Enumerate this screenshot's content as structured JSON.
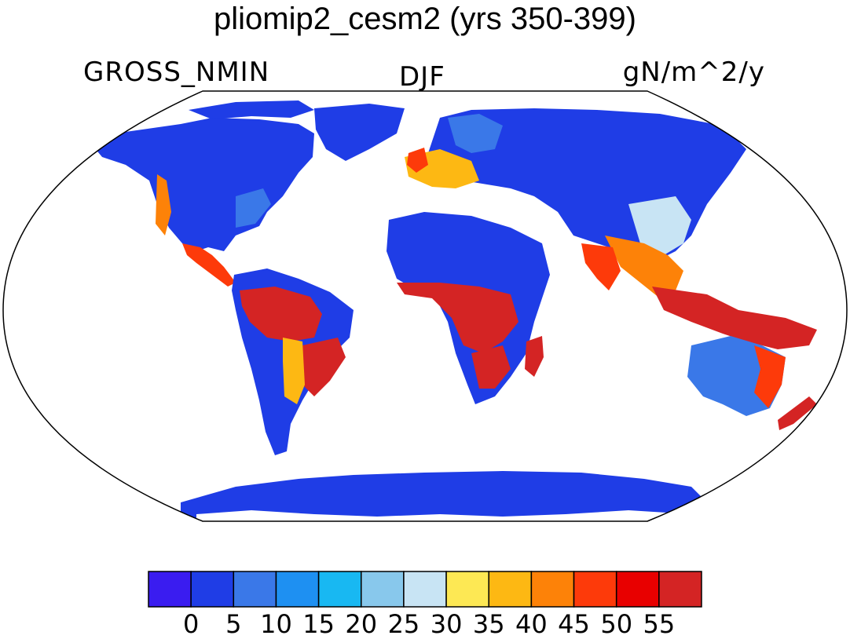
{
  "title": "pliomip2_cesm2 (yrs 350-399)",
  "variable": "GROSS_NMIN",
  "season": "DJF",
  "units": "gN/m^2/y",
  "colorbar": {
    "labels": [
      "0",
      "5",
      "10",
      "15",
      "20",
      "25",
      "30",
      "35",
      "40",
      "45",
      "50",
      "55"
    ],
    "colors": [
      "#3a1cf0",
      "#1f3de6",
      "#3a78e8",
      "#1e90f2",
      "#18b8f2",
      "#88c8ec",
      "#c8e4f4",
      "#fde854",
      "#fdb813",
      "#fd8208",
      "#fd3a0a",
      "#e80000",
      "#d42424"
    ]
  },
  "map": {
    "projection": "Robinson",
    "ocean_color": "#ffffff",
    "coast_color": "#000000"
  }
}
